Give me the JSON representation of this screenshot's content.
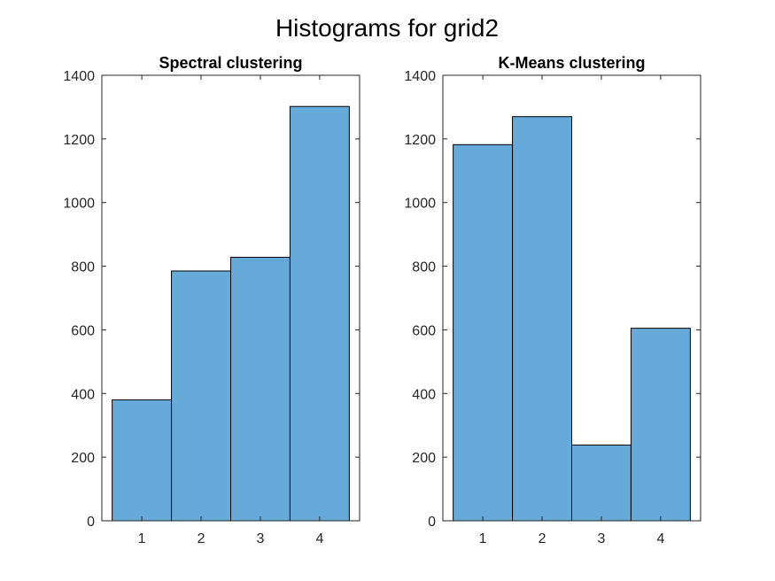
{
  "figure": {
    "title": "Histograms for grid2"
  },
  "colors": {
    "bar_fill": "#66AADA",
    "bar_edge": "#000000",
    "axis": "#262626",
    "text": "#262626"
  },
  "chart_data": [
    {
      "type": "bar",
      "title": "Spectral clustering",
      "xlabel": "",
      "ylabel": "",
      "categories": [
        "1",
        "2",
        "3",
        "4"
      ],
      "values": [
        380,
        785,
        828,
        1302
      ],
      "ylim": [
        0,
        1400
      ],
      "yticks": [
        0,
        200,
        400,
        600,
        800,
        1000,
        1200,
        1400
      ],
      "xticks": [
        1,
        2,
        3,
        4
      ],
      "grid": false,
      "legend": "none"
    },
    {
      "type": "bar",
      "title": "K-Means clustering",
      "xlabel": "",
      "ylabel": "",
      "categories": [
        "1",
        "2",
        "3",
        "4"
      ],
      "values": [
        1182,
        1270,
        238,
        605
      ],
      "ylim": [
        0,
        1400
      ],
      "yticks": [
        0,
        200,
        400,
        600,
        800,
        1000,
        1200,
        1400
      ],
      "xticks": [
        1,
        2,
        3,
        4
      ],
      "grid": false,
      "legend": "none"
    }
  ]
}
